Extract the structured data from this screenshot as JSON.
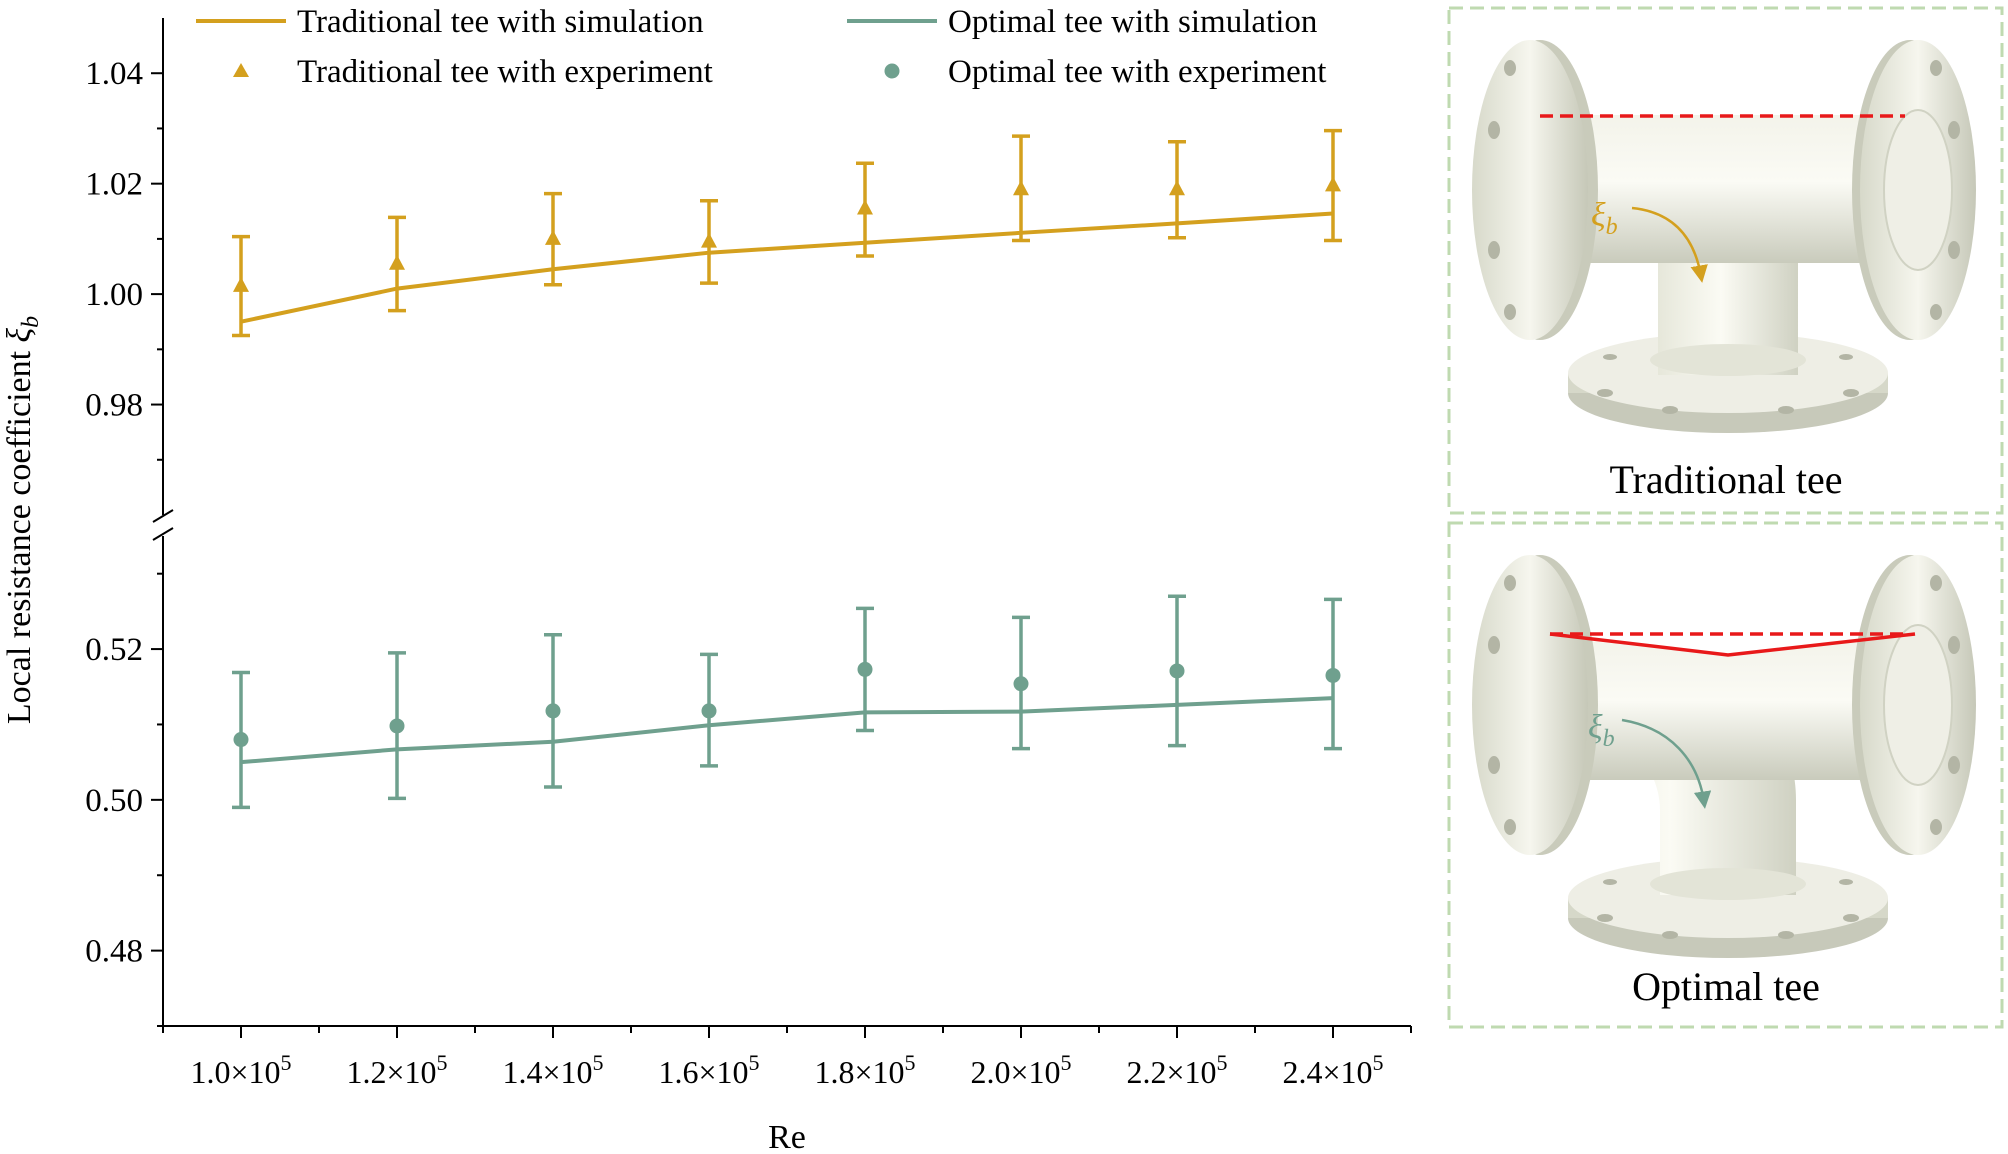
{
  "chart_data": {
    "type": "line",
    "xlabel": "Re",
    "ylabel": "Local resistance coefficient",
    "ylabel_symbol": "ξ",
    "ylabel_subscript": "b",
    "x": [
      100000,
      120000,
      140000,
      160000,
      180000,
      200000,
      220000,
      240000
    ],
    "x_tick_labels": [
      {
        "mantissa": "1.0×10",
        "exp": "5"
      },
      {
        "mantissa": "1.2×10",
        "exp": "5"
      },
      {
        "mantissa": "1.4×10",
        "exp": "5"
      },
      {
        "mantissa": "1.6×10",
        "exp": "5"
      },
      {
        "mantissa": "1.8×10",
        "exp": "5"
      },
      {
        "mantissa": "2.0×10",
        "exp": "5"
      },
      {
        "mantissa": "2.2×10",
        "exp": "5"
      },
      {
        "mantissa": "2.4×10",
        "exp": "5"
      }
    ],
    "xlim": [
      90000,
      250000
    ],
    "y_axis_break": true,
    "upper_ylim": [
      0.96,
      1.05
    ],
    "upper_yticks": [
      0.98,
      1.0,
      1.02,
      1.04
    ],
    "upper_ytick_labels": [
      "0.98",
      "1.00",
      "1.02",
      "1.04"
    ],
    "lower_ylim": [
      0.47,
      0.535
    ],
    "lower_yticks": [
      0.48,
      0.5,
      0.52
    ],
    "lower_ytick_labels": [
      "0.48",
      "0.50",
      "0.52"
    ],
    "series": [
      {
        "name": "Traditional tee with simulation",
        "kind": "line",
        "color": "#D4A01E",
        "values": [
          0.995,
          1.001,
          1.0045,
          1.0075,
          1.0093,
          1.0111,
          1.0128,
          1.0146
        ]
      },
      {
        "name": "Traditional tee with experiment",
        "kind": "triangle-markers",
        "color": "#D4A01E",
        "values": [
          1.0015,
          1.0055,
          1.01,
          1.0095,
          1.0155,
          1.019,
          1.019,
          1.0197
        ],
        "err_low": [
          0.9925,
          0.997,
          1.0017,
          1.002,
          1.0069,
          1.0097,
          1.0102,
          1.0097
        ],
        "err_high": [
          1.0104,
          1.0139,
          1.0182,
          1.0169,
          1.0237,
          1.0286,
          1.0276,
          1.0296
        ]
      },
      {
        "name": "Optimal tee with simulation",
        "kind": "line",
        "color": "#6FA08E",
        "values": [
          0.505,
          0.5067,
          0.5077,
          0.5099,
          0.5116,
          0.5117,
          0.5126,
          0.5135
        ]
      },
      {
        "name": "Optimal tee with experiment",
        "kind": "circle-markers",
        "color": "#6FA08E",
        "values": [
          0.508,
          0.5098,
          0.5118,
          0.5118,
          0.5173,
          0.5154,
          0.5171,
          0.5165
        ],
        "err_low": [
          0.499,
          0.5002,
          0.5017,
          0.5045,
          0.5092,
          0.5068,
          0.5072,
          0.5068
        ],
        "err_high": [
          0.5169,
          0.5195,
          0.5219,
          0.5193,
          0.5254,
          0.5242,
          0.527,
          0.5266
        ]
      }
    ],
    "legend_location": "top, inside plot area"
  },
  "panels": {
    "traditional_label": "Traditional tee",
    "optimal_label": "Optimal tee",
    "flow_symbol": "ξ",
    "flow_subscript": "b"
  },
  "colors": {
    "traditional": "#D4A01E",
    "optimal": "#6FA08E",
    "red_guide": "#E8191A",
    "panel_border": "#BFDAB0"
  }
}
